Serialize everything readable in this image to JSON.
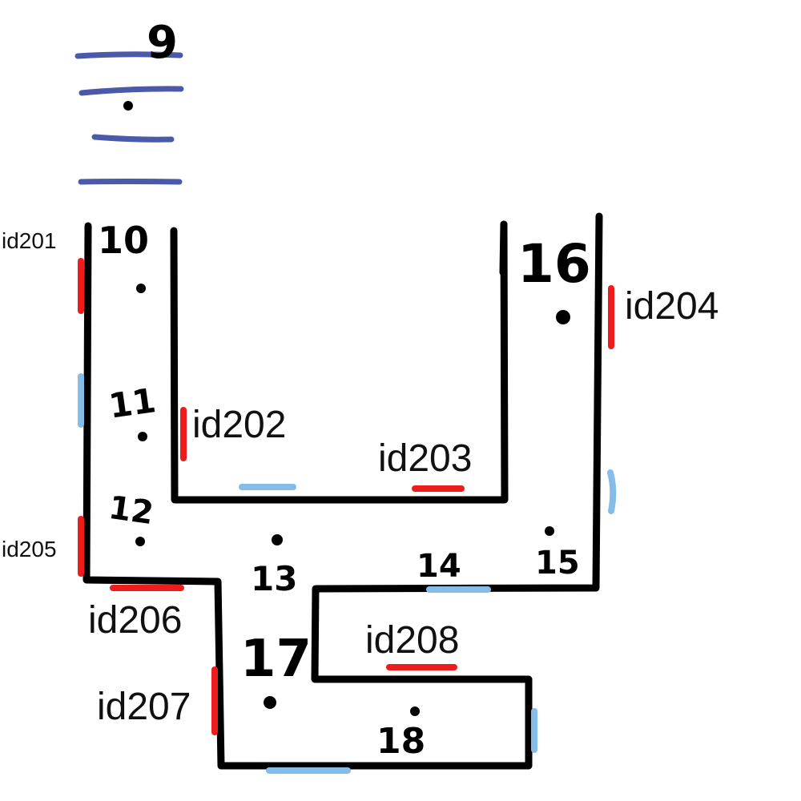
{
  "node_labels": {
    "n9": "9",
    "n10": "10",
    "n11": "11",
    "n12": "12",
    "n13": "13",
    "n14": "14",
    "n15": "15",
    "n16": "16",
    "n17": "17",
    "n18": "18"
  },
  "door_labels": {
    "id201": "id201",
    "id202": "id202",
    "id203": "id203",
    "id204": "id204",
    "id205": "id205",
    "id206": "id206",
    "id207": "id207",
    "id208": "id208"
  },
  "colors": {
    "wall": "#000000",
    "stairs": "#4a5aa8",
    "door_red": "#ee1c1c",
    "opening_blue": "#86bde8"
  }
}
